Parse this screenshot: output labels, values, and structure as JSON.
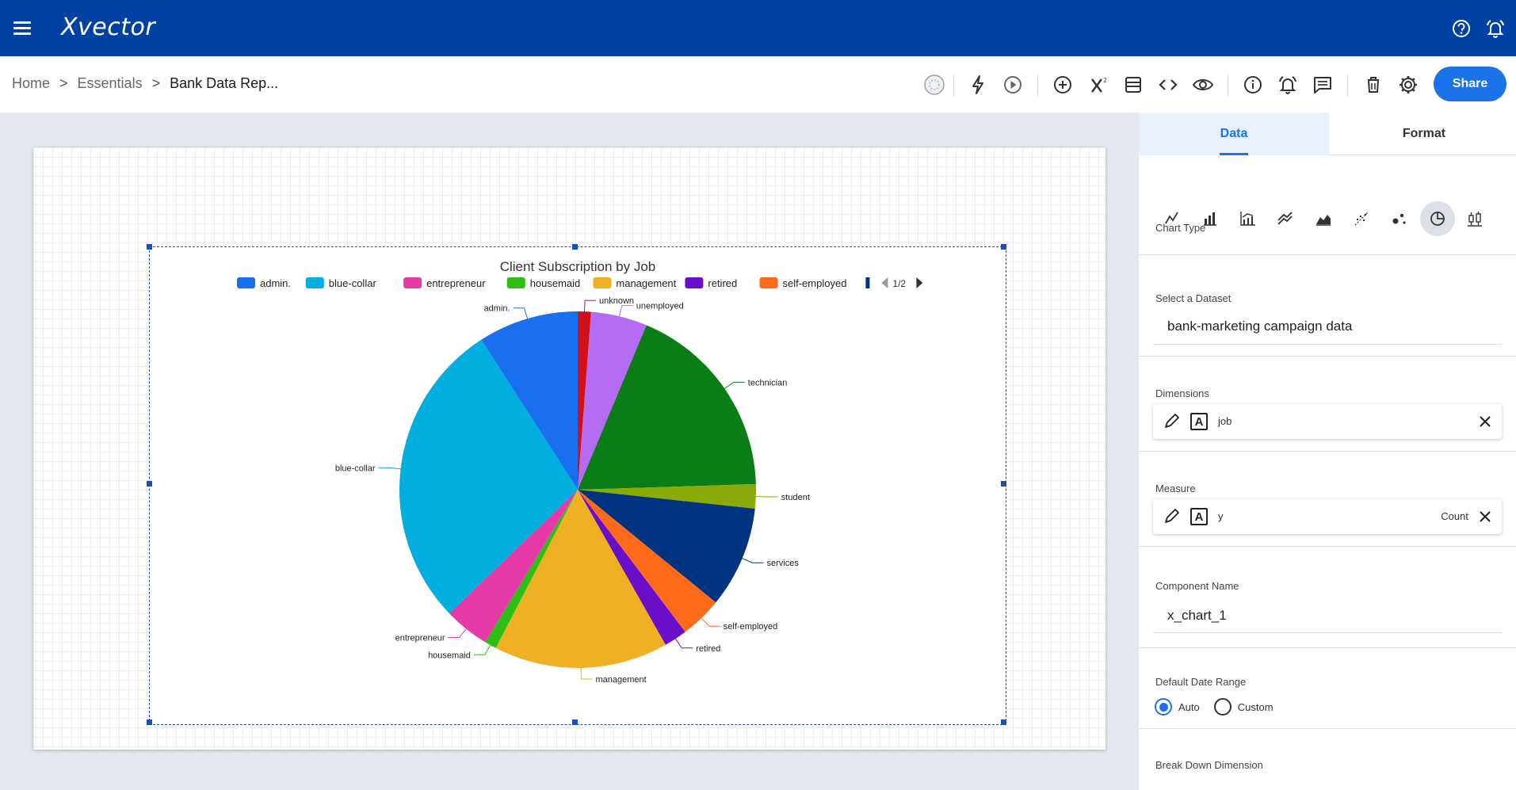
{
  "app": {
    "logo": "Xvector"
  },
  "breadcrumb": {
    "home": "Home",
    "sep": ">",
    "essentials": "Essentials",
    "current": "Bank Data Rep..."
  },
  "toolbar": {
    "share_label": "Share"
  },
  "panel": {
    "tabs": [
      "Data",
      "Format"
    ],
    "chart_type_label": "Chart Type",
    "chart_types": [
      "line-chart-icon",
      "bar-chart-icon",
      "combo-chart-icon",
      "multi-line-icon",
      "area-chart-icon",
      "scatter-line-icon",
      "bubble-chart-icon",
      "pie-chart-icon",
      "candlestick-icon"
    ],
    "selected_chart_type": "pie-chart-icon",
    "dataset_label": "Select a Dataset",
    "dataset_value": "bank-marketing campaign data",
    "dimensions_label": "Dimensions",
    "dimension": "job",
    "measure_label": "Measure",
    "measure": "y",
    "measure_agg": "Count",
    "component_name_label": "Component Name",
    "component_name": "x_chart_1",
    "date_range_label": "Default Date Range",
    "date_range_auto": "Auto",
    "date_range_custom": "Custom",
    "breakdown_label": "Break Down Dimension"
  },
  "chart_data": {
    "type": "pie",
    "title": "Client Subscription by Job",
    "legend_placement": "top",
    "legend_page": "1/2",
    "legend_visible": [
      "admin.",
      "blue-collar",
      "entrepreneur",
      "housemaid",
      "management",
      "retired",
      "self-employed"
    ],
    "slices": [
      {
        "label": "unknown",
        "value": 1.2,
        "color": "#d0101a"
      },
      {
        "label": "unemployed",
        "value": 5.1,
        "color": "#b56cf5"
      },
      {
        "label": "technician",
        "value": 18.2,
        "color": "#0a7d16"
      },
      {
        "label": "student",
        "value": 2.2,
        "color": "#8aaa0a"
      },
      {
        "label": "services",
        "value": 9.2,
        "color": "#003380"
      },
      {
        "label": "self-employed",
        "value": 3.8,
        "color": "#ff6a1a"
      },
      {
        "label": "retired",
        "value": 2.1,
        "color": "#6a0fc9"
      },
      {
        "label": "management",
        "value": 15.8,
        "color": "#efb024"
      },
      {
        "label": "housemaid",
        "value": 1.1,
        "color": "#2fbf14"
      },
      {
        "label": "entrepreneur",
        "value": 4.1,
        "color": "#e53aa8"
      },
      {
        "label": "blue-collar",
        "value": 28.1,
        "color": "#00aedf"
      },
      {
        "label": "admin.",
        "value": 9.1,
        "color": "#1a6fef"
      }
    ]
  }
}
